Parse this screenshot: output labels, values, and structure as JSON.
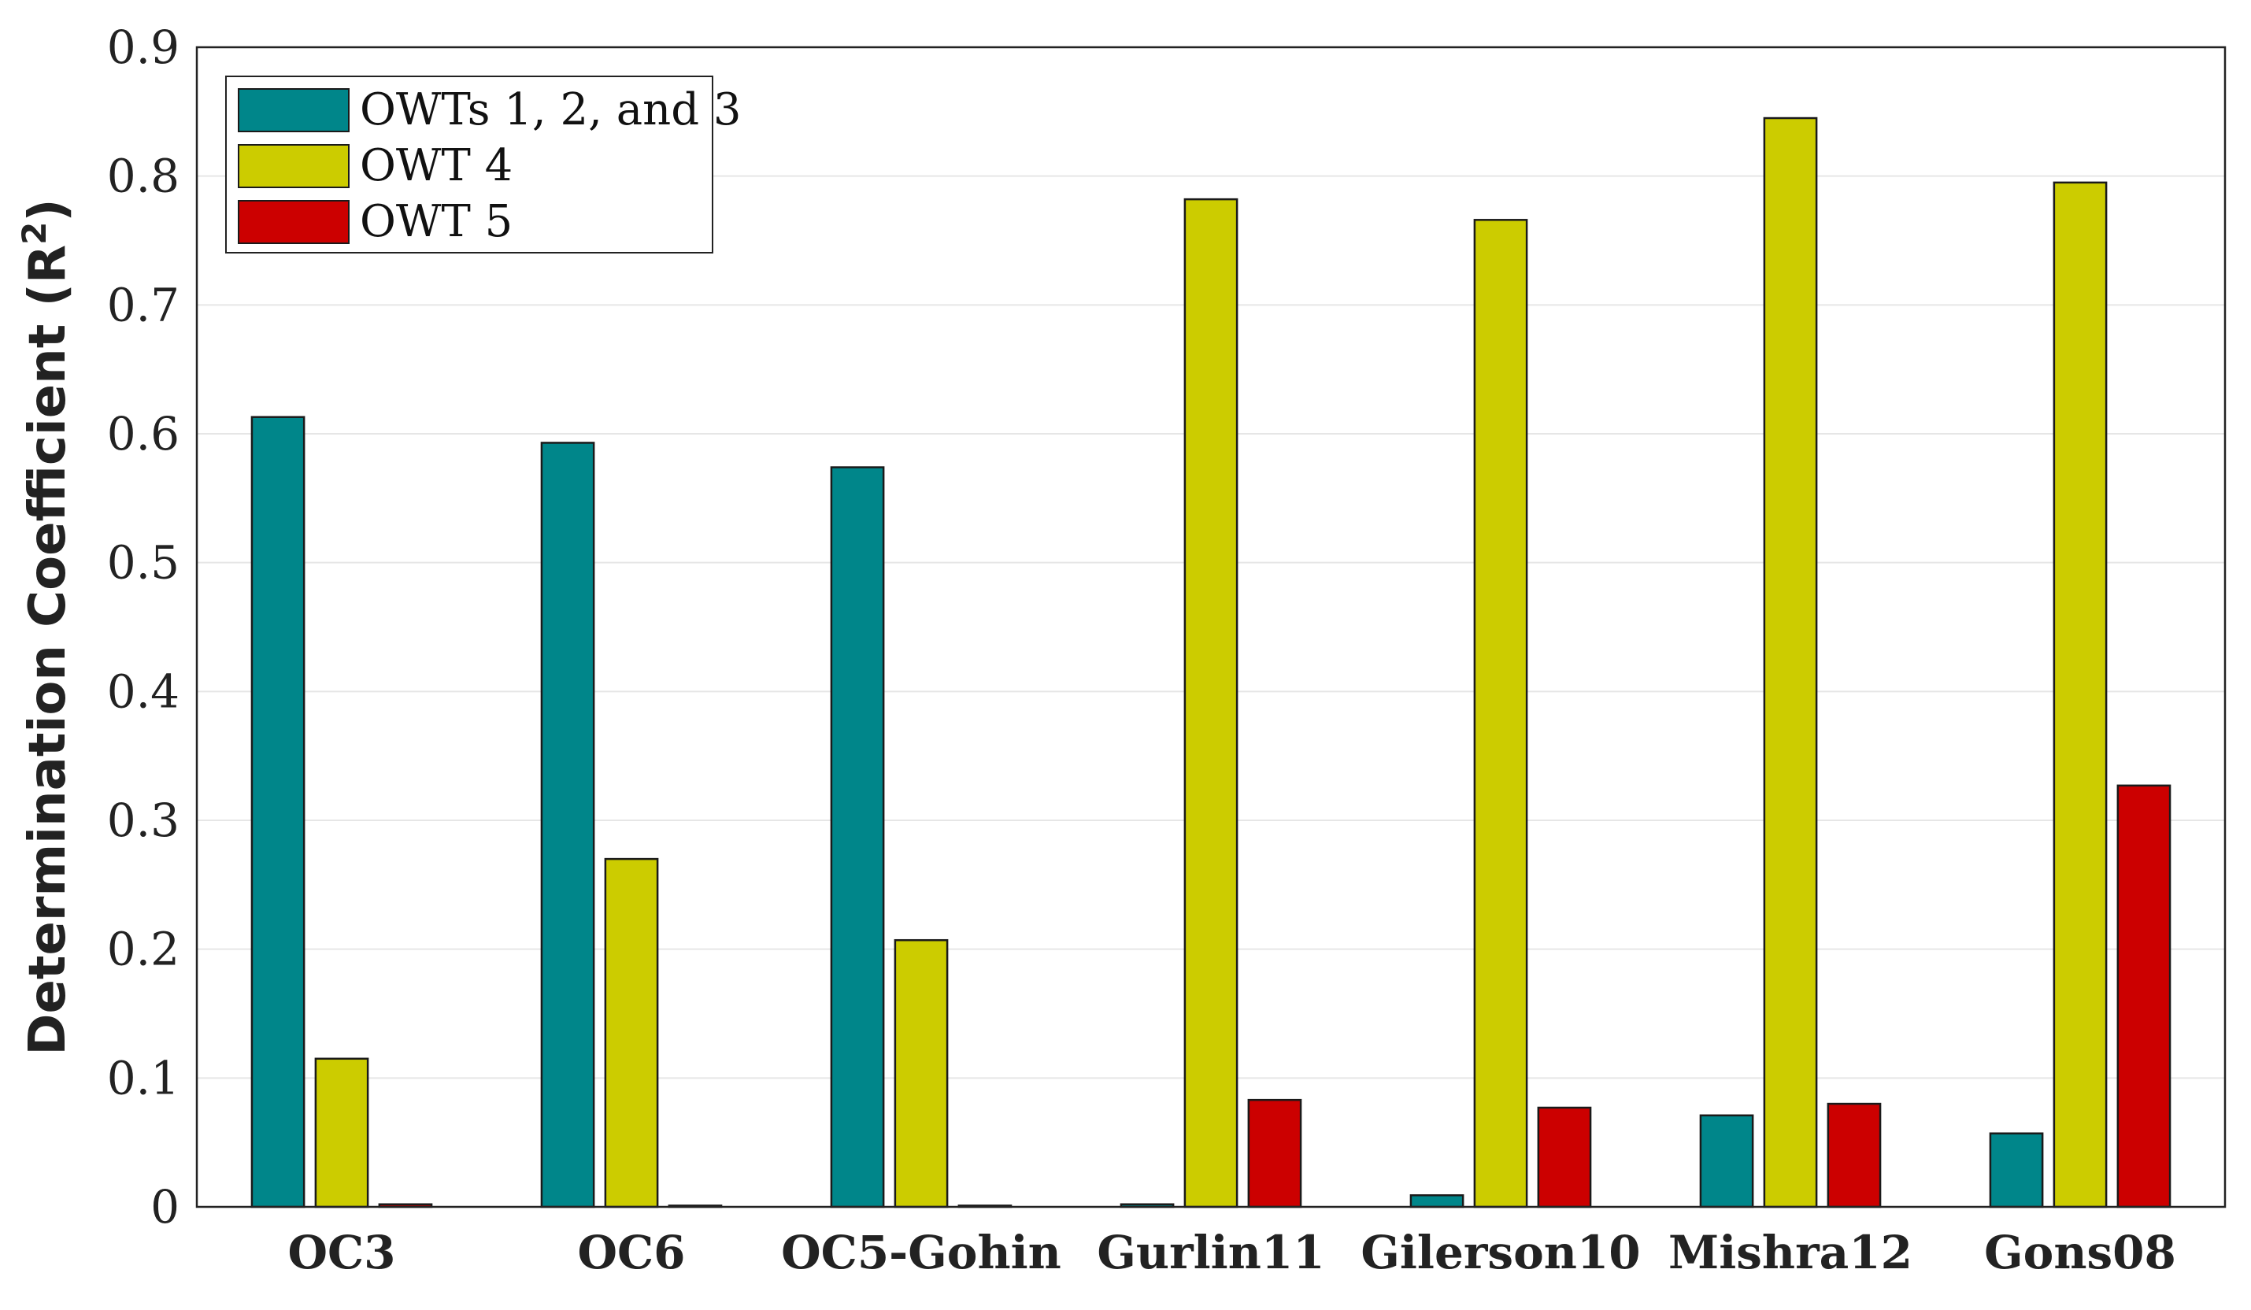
{
  "chart_data": {
    "type": "bar",
    "categories": [
      "OC3",
      "OC6",
      "OC5-Gohin",
      "Gurlin11",
      "Gilerson10",
      "Mishra12",
      "Gons08"
    ],
    "series": [
      {
        "name": "OWTs 1, 2, and 3",
        "color": "#00868a",
        "values": [
          0.613,
          0.593,
          0.574,
          0.002,
          0.009,
          0.071,
          0.057
        ]
      },
      {
        "name": "OWT 4",
        "color": "#cccc00",
        "values": [
          0.115,
          0.27,
          0.207,
          0.782,
          0.766,
          0.845,
          0.795
        ]
      },
      {
        "name": "OWT 5",
        "color": "#cc0000",
        "values": [
          0.002,
          0.001,
          0.001,
          0.083,
          0.077,
          0.08,
          0.327
        ]
      }
    ],
    "ylabel_main": "Determination Coefficient (R",
    "ylabel_sup": "2",
    "ylabel_end": ")",
    "xlabel": "",
    "ylim": [
      0,
      0.9
    ],
    "yticks": [
      "0",
      "0.1",
      "0.2",
      "0.3",
      "0.4",
      "0.5",
      "0.6",
      "0.7",
      "0.8",
      "0.9"
    ],
    "grid": true,
    "legend_position": "top-left"
  }
}
